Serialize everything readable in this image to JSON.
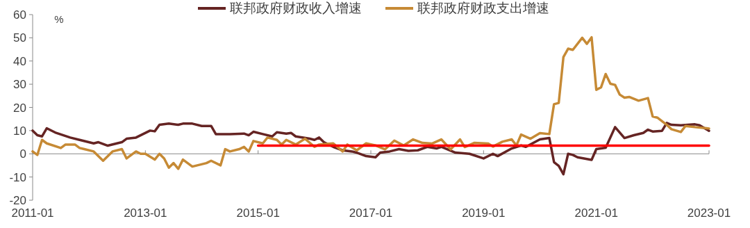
{
  "chart_data": {
    "type": "line",
    "ylabel": "%",
    "legend": "top",
    "xlim": [
      "2011-01",
      "2023-01"
    ],
    "xticks": [
      "2011-01",
      "2013-01",
      "2015-01",
      "2017-01",
      "2019-01",
      "2021-01",
      "2023-01"
    ],
    "ylim": [
      -20,
      60
    ],
    "yticks": [
      -20,
      -10,
      0,
      10,
      20,
      30,
      40,
      50,
      60
    ],
    "series": [
      {
        "name": "联邦政府财政收入增速",
        "color": "#652423",
        "x": [
          "2011-01",
          "2011-02",
          "2011-03",
          "2011-04",
          "2011-06",
          "2011-09",
          "2011-11",
          "2012-02",
          "2012-03",
          "2012-05",
          "2012-08",
          "2012-09",
          "2012-11",
          "2013-02",
          "2013-03",
          "2013-04",
          "2013-06",
          "2013-08",
          "2013-09",
          "2013-11",
          "2014-01",
          "2014-03",
          "2014-04",
          "2014-07",
          "2014-10",
          "2014-11",
          "2014-12",
          "2015-02",
          "2015-04",
          "2015-05",
          "2015-07",
          "2015-08",
          "2015-09",
          "2015-12",
          "2016-01",
          "2016-02",
          "2016-03",
          "2016-05",
          "2016-07",
          "2016-09",
          "2016-10",
          "2016-12",
          "2017-02",
          "2017-03",
          "2017-05",
          "2017-07",
          "2017-09",
          "2017-11",
          "2018-01",
          "2018-03",
          "2018-04",
          "2018-07",
          "2018-10",
          "2019-01",
          "2019-03",
          "2019-04",
          "2019-07",
          "2019-09",
          "2019-10",
          "2020-01",
          "2020-03",
          "2020-04",
          "2020-05",
          "2020-06",
          "2020-07",
          "2020-08",
          "2020-09",
          "2020-12",
          "2021-01",
          "2021-03",
          "2021-05",
          "2021-07",
          "2021-09",
          "2021-11",
          "2021-12",
          "2022-01",
          "2022-03",
          "2022-04",
          "2022-05",
          "2022-07",
          "2022-10",
          "2022-11",
          "2023-01"
        ],
        "values": [
          10,
          8,
          7.5,
          11,
          9,
          7,
          6,
          4.5,
          5,
          3.5,
          5,
          6.5,
          7,
          10,
          9.7,
          12.5,
          13,
          12.5,
          13,
          13,
          12,
          12,
          8.5,
          8.5,
          8.7,
          8,
          9.5,
          8.5,
          7.5,
          9.3,
          8.7,
          9,
          7.5,
          6.5,
          6,
          7,
          5,
          3,
          1.5,
          1,
          0.5,
          -1,
          -1.5,
          0.5,
          1,
          2,
          1.3,
          1.5,
          3,
          2.3,
          3,
          0.5,
          0,
          -2,
          0,
          -1,
          2.3,
          3.6,
          3,
          6.2,
          6.8,
          -3.6,
          -5.2,
          -8.8,
          0,
          -0.5,
          -1.5,
          -2.6,
          2,
          2.6,
          11.5,
          6.8,
          8,
          9,
          10.4,
          9.6,
          9.9,
          13.3,
          12.5,
          12.3,
          12.7,
          12.3,
          9.9
        ]
      },
      {
        "name": "联邦政府财政支出增速",
        "color": "#c68a35",
        "x": [
          "2011-01",
          "2011-02",
          "2011-03",
          "2011-04",
          "2011-07",
          "2011-08",
          "2011-10",
          "2011-11",
          "2011-12",
          "2012-02",
          "2012-04",
          "2012-06",
          "2012-08",
          "2012-09",
          "2012-11",
          "2012-12",
          "2013-01",
          "2013-03",
          "2013-04",
          "2013-05",
          "2013-06",
          "2013-07",
          "2013-08",
          "2013-09",
          "2013-11",
          "2014-02",
          "2014-03",
          "2014-05",
          "2014-06",
          "2014-07",
          "2014-09",
          "2014-10",
          "2014-11",
          "2014-12",
          "2015-02",
          "2015-03",
          "2015-05",
          "2015-06",
          "2015-07",
          "2015-09",
          "2015-11",
          "2016-01",
          "2016-02",
          "2016-05",
          "2016-07",
          "2016-08",
          "2016-10",
          "2016-12",
          "2017-02",
          "2017-04",
          "2017-06",
          "2017-08",
          "2017-10",
          "2017-12",
          "2018-02",
          "2018-04",
          "2018-06",
          "2018-08",
          "2018-09",
          "2018-11",
          "2019-02",
          "2019-03",
          "2019-05",
          "2019-07",
          "2019-08",
          "2019-09",
          "2019-11",
          "2020-01",
          "2020-03",
          "2020-04",
          "2020-05",
          "2020-06",
          "2020-07",
          "2020-08",
          "2020-10",
          "2020-11",
          "2020-12",
          "2021-01",
          "2021-02",
          "2021-03",
          "2021-04",
          "2021-05",
          "2021-06",
          "2021-07",
          "2021-08",
          "2021-10",
          "2021-12",
          "2022-01",
          "2022-02",
          "2022-04",
          "2022-05",
          "2022-07",
          "2022-08",
          "2022-10",
          "2023-01"
        ],
        "values": [
          1,
          -0.5,
          6,
          4.5,
          2.5,
          4,
          4,
          2.5,
          2,
          1,
          -3,
          1,
          2,
          -2,
          1,
          0,
          0,
          -2.5,
          0,
          -2,
          -6,
          -4,
          -6.5,
          -2.5,
          -5.5,
          -4,
          -3,
          -5,
          2,
          1,
          2,
          3,
          1,
          5.5,
          4.5,
          7,
          6,
          4,
          6,
          4,
          6.5,
          3,
          4,
          4.5,
          1,
          4,
          1.5,
          4.5,
          3.6,
          1.9,
          5.7,
          3.6,
          6.2,
          4.7,
          4.4,
          6.2,
          1.9,
          6.2,
          2.9,
          4.7,
          4.4,
          3.1,
          5.2,
          6.2,
          3.6,
          8.3,
          6.5,
          8.9,
          8.5,
          21.4,
          21.9,
          41.7,
          45.3,
          44.8,
          50,
          47.4,
          50.2,
          27.6,
          28.6,
          34.4,
          30.2,
          29.7,
          25.5,
          24.2,
          24.5,
          22.9,
          24,
          16.1,
          15.6,
          12.5,
          10.6,
          9.4,
          12,
          11.5,
          10.9
        ]
      },
      {
        "color": "#ff0000",
        "x": [
          "2015-01",
          "2023-01"
        ],
        "values": [
          3.5,
          3.5
        ]
      }
    ]
  }
}
